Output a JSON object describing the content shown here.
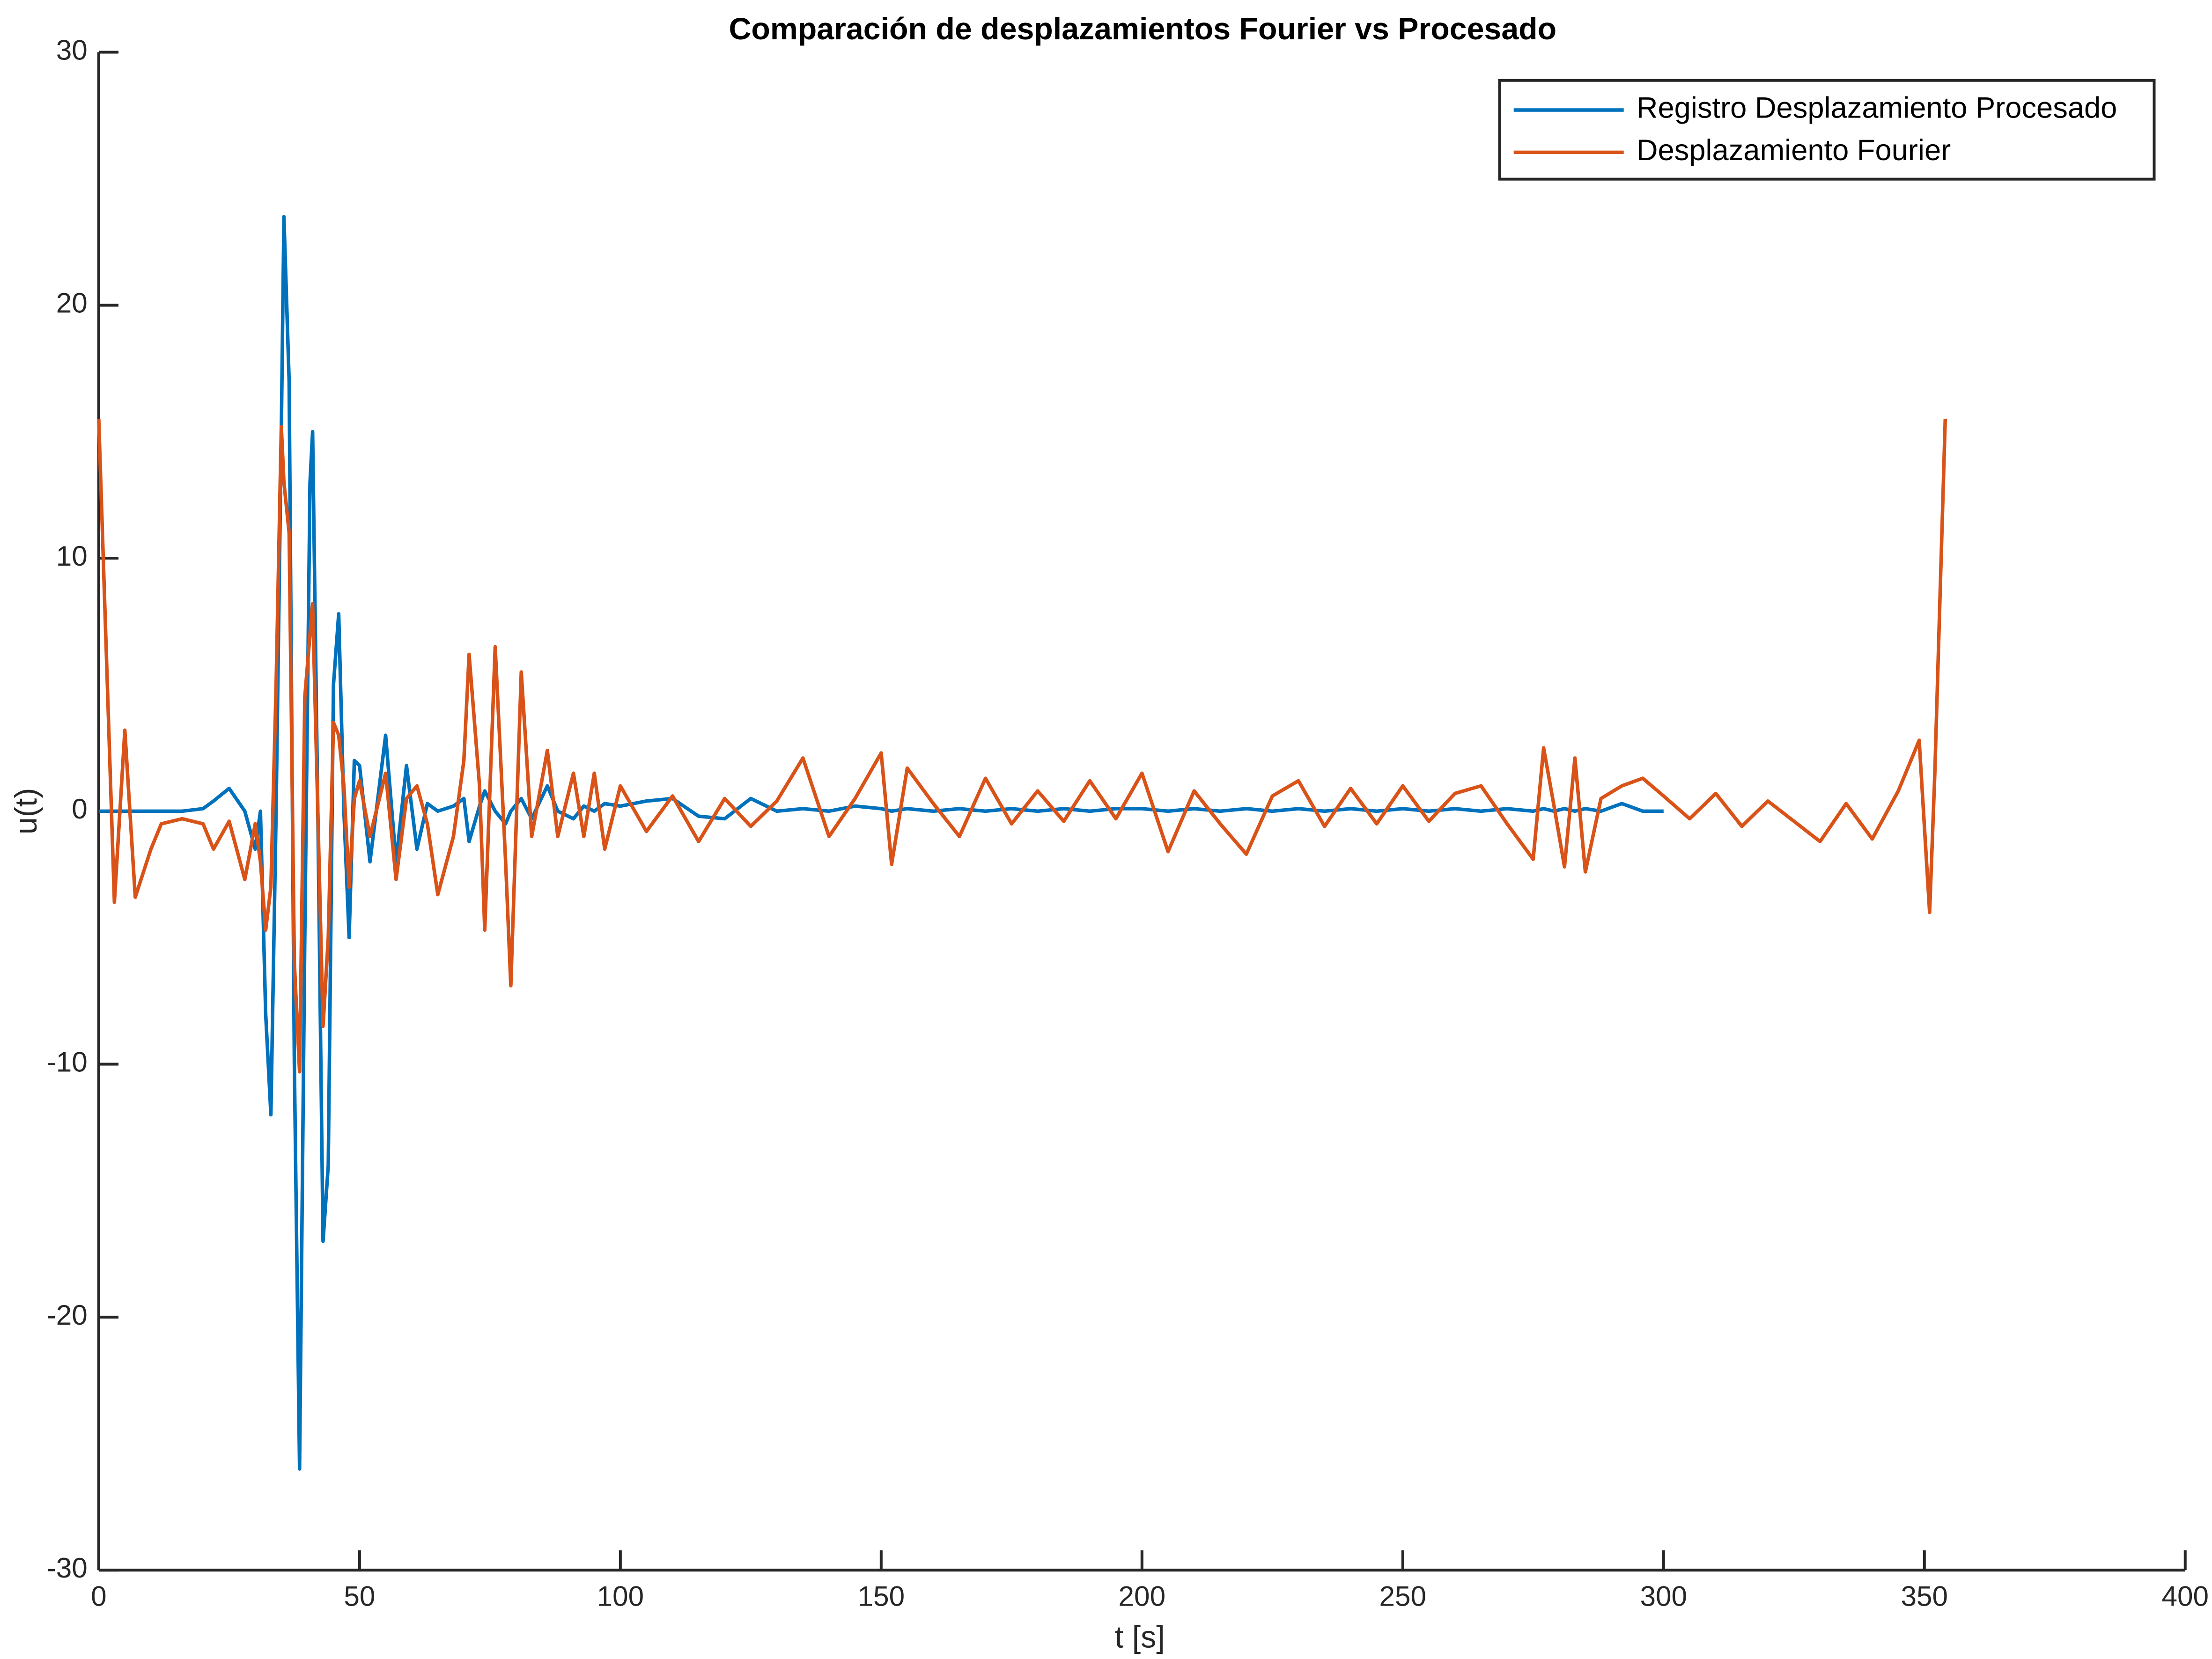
{
  "chart_data": {
    "type": "line",
    "title": "Comparación de desplazamientos Fourier vs Procesado",
    "xlabel": "t [s]",
    "ylabel": "u(t)",
    "xlim": [
      0,
      400
    ],
    "xticks": [
      0,
      50,
      100,
      150,
      200,
      250,
      300,
      350,
      400
    ],
    "ylim": [
      -30,
      30
    ],
    "yticks": [
      -30,
      -20,
      -10,
      0,
      10,
      20,
      30
    ],
    "legend": "upper right",
    "x": [
      0,
      3,
      5,
      7,
      10,
      12,
      16,
      20,
      22,
      25,
      28,
      30,
      31,
      32,
      33,
      34,
      35,
      35.5,
      36.5,
      37.5,
      38.5,
      39.5,
      40.5,
      41,
      42,
      43,
      44,
      45,
      46,
      47,
      48,
      49,
      50,
      52,
      55,
      57,
      59,
      61,
      63,
      65,
      68,
      70,
      71,
      73,
      74,
      76,
      78,
      79,
      81,
      83,
      86,
      88,
      91,
      93,
      95,
      97,
      100,
      105,
      110,
      115,
      120,
      125,
      130,
      135,
      140,
      145,
      150,
      152,
      155,
      160,
      165,
      170,
      175,
      180,
      185,
      190,
      195,
      200,
      205,
      210,
      215,
      220,
      225,
      230,
      235,
      240,
      245,
      250,
      255,
      260,
      265,
      270,
      275,
      277,
      279,
      281,
      283,
      285,
      288,
      292,
      296,
      300,
      305,
      310,
      315,
      320,
      325,
      330,
      335,
      340,
      345,
      349,
      351,
      352,
      354
    ],
    "series": [
      {
        "name": "Registro Desplazamiento Procesado",
        "color": "#0072bd",
        "values": [
          0,
          0,
          0,
          0,
          0,
          0,
          0,
          0.1,
          0.4,
          0.9,
          0,
          -1.5,
          0,
          -8,
          -12,
          0,
          15,
          23.5,
          17,
          -10,
          -26,
          -5,
          13,
          15,
          0,
          -17,
          -14,
          5,
          7.8,
          0,
          -5,
          2,
          1.8,
          -2,
          3,
          -2,
          1.8,
          -1.5,
          0.3,
          0,
          0.2,
          0.5,
          -1.2,
          0.2,
          0.8,
          0,
          -0.5,
          0,
          0.5,
          -0.3,
          1,
          0,
          -0.3,
          0.2,
          0,
          0.3,
          0.2,
          0.4,
          0.5,
          -0.2,
          -0.3,
          0.5,
          0,
          0.1,
          0,
          0.2,
          0.1,
          0,
          0.1,
          0,
          0.1,
          0,
          0.1,
          0,
          0.1,
          0,
          0.1,
          0.1,
          0,
          0.1,
          0,
          0.1,
          0,
          0.1,
          0,
          0.1,
          0,
          0.1,
          0,
          0.1,
          0,
          0.1,
          0,
          0.1,
          0,
          0.1,
          0,
          0.1,
          0,
          0.3,
          0,
          0,
          null,
          null,
          null,
          null,
          null,
          null,
          null,
          null,
          null,
          null,
          null,
          null,
          null
        ]
      },
      {
        "name": "Desplazamiento Fourier",
        "color": "#d95319",
        "values": [
          15.5,
          -3.6,
          3.2,
          -3.4,
          -1.5,
          -0.5,
          -0.3,
          -0.5,
          -1.5,
          -0.4,
          -2.7,
          -0.5,
          -2,
          -4.7,
          -3,
          5,
          15.2,
          13,
          11,
          -6,
          -10.3,
          4.5,
          7,
          8.2,
          0,
          -8.5,
          -5,
          3.5,
          3,
          1,
          -3,
          0.5,
          1.2,
          -1,
          1.5,
          -2.7,
          0.5,
          1,
          -0.5,
          -3.3,
          -1,
          2,
          6.2,
          1,
          -4.7,
          6.5,
          -2,
          -6.9,
          5.5,
          -1,
          2.4,
          -1,
          1.5,
          -1,
          1.5,
          -1.5,
          1,
          -0.8,
          0.6,
          -1.2,
          0.5,
          -0.6,
          0.4,
          2.1,
          -1,
          0.5,
          2.3,
          -2.1,
          1.7,
          0.3,
          -1,
          1.3,
          -0.5,
          0.8,
          -0.4,
          1.2,
          -0.3,
          1.5,
          -1.6,
          0.8,
          -0.5,
          -1.7,
          0.6,
          1.2,
          -0.6,
          0.9,
          -0.5,
          1,
          -0.4,
          0.7,
          1,
          -0.5,
          -1.9,
          2.5,
          0.2,
          -2.2,
          2.1,
          -2.4,
          0.5,
          1,
          1.3,
          0.6,
          -0.3,
          0.7,
          -0.6,
          0.4,
          -0.4,
          -1.2,
          0.3,
          -1.1,
          0.8,
          2.8,
          -4,
          1.5,
          15.5
        ]
      }
    ]
  }
}
